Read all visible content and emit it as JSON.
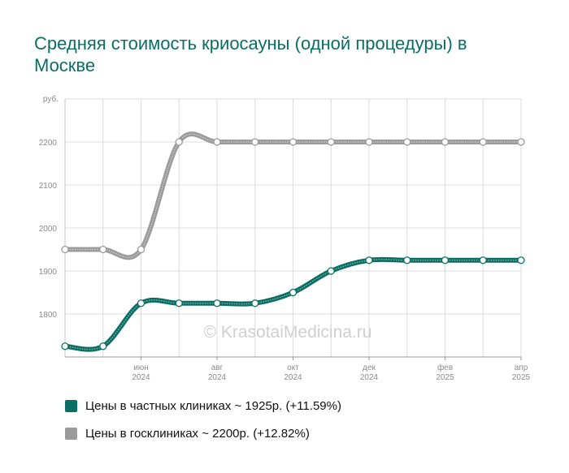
{
  "title": "Средняя стоимость криосауны (одной процедуры) в Москве",
  "watermark": "© KrasotaiMedicina.ru",
  "chart_data": {
    "type": "line",
    "y_unit": "руб.",
    "ylim": [
      1700,
      2300
    ],
    "yticks": [
      1800,
      1900,
      2000,
      2100,
      2200
    ],
    "x_ticks": [
      {
        "month": "июн",
        "year": "2024"
      },
      {
        "month": "авг",
        "year": "2024"
      },
      {
        "month": "окт",
        "year": "2024"
      },
      {
        "month": "дек",
        "year": "2024"
      },
      {
        "month": "фев",
        "year": "2025"
      },
      {
        "month": "апр",
        "year": "2025"
      }
    ],
    "x": [
      "2024-04",
      "2024-05",
      "2024-06",
      "2024-07",
      "2024-08",
      "2024-09",
      "2024-10",
      "2024-11",
      "2024-12",
      "2025-01",
      "2025-02",
      "2025-03",
      "2025-04"
    ],
    "grid": true,
    "legend_position": "bottom",
    "series": [
      {
        "name": "Цены в частных клиниках ~ 1925р. (+11.59%)",
        "color": "#0b6e63",
        "values": [
          1725,
          1725,
          1825,
          1825,
          1825,
          1825,
          1850,
          1900,
          1925,
          1925,
          1925,
          1925,
          1925
        ]
      },
      {
        "name": "Цены в госклиниках ~ 2200р. (+12.82%)",
        "color": "#9b9b9b",
        "values": [
          1950,
          1950,
          1950,
          2200,
          2200,
          2200,
          2200,
          2200,
          2200,
          2200,
          2200,
          2200,
          2200
        ]
      }
    ]
  }
}
